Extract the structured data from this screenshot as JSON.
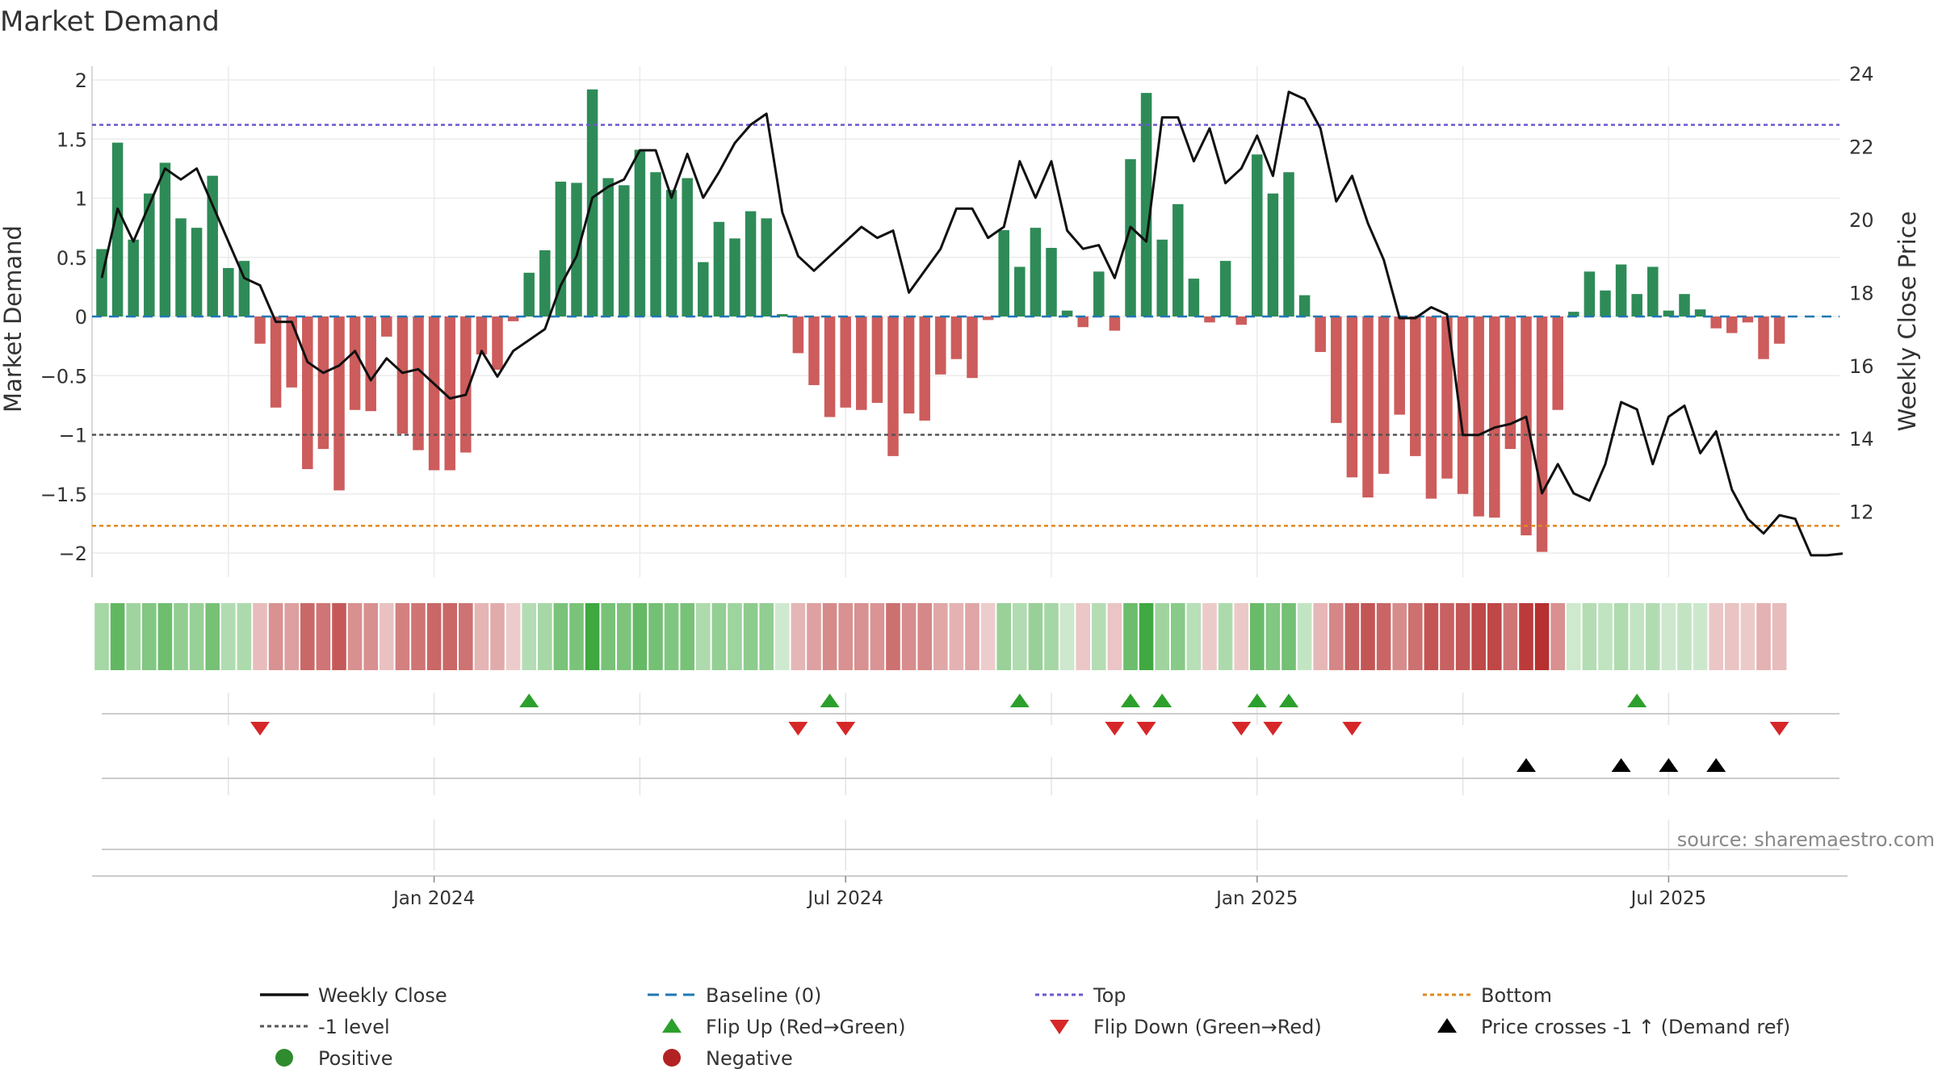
{
  "chart_data": {
    "type": "bar",
    "title": "Market Demand",
    "ylabel": "Market Demand",
    "y2label": "Weekly Close Price",
    "ylim": [
      -2.2,
      2.2
    ],
    "y2lim": [
      10.6,
      24.4
    ],
    "yticks": [
      {
        "v": 2,
        "t": "2"
      },
      {
        "v": 1.5,
        "t": "1.5"
      },
      {
        "v": 1,
        "t": "1"
      },
      {
        "v": 0.5,
        "t": "0.5"
      },
      {
        "v": 0,
        "t": "0"
      },
      {
        "v": -0.5,
        "t": "−0.5"
      },
      {
        "v": -1,
        "t": "−1"
      },
      {
        "v": -1.5,
        "t": "−1.5"
      },
      {
        "v": -2,
        "t": "−2"
      }
    ],
    "y2ticks": [
      {
        "v": 24,
        "t": "24"
      },
      {
        "v": 22,
        "t": "22"
      },
      {
        "v": 20,
        "t": "20"
      },
      {
        "v": 18,
        "t": "18"
      },
      {
        "v": 16,
        "t": "16"
      },
      {
        "v": 14,
        "t": "14"
      },
      {
        "v": 12,
        "t": "12"
      }
    ],
    "xticks": [
      {
        "i": 21,
        "t": "Jan 2024"
      },
      {
        "i": 47,
        "t": "Jul 2024"
      },
      {
        "i": 73,
        "t": "Jan 2025"
      },
      {
        "i": 99,
        "t": "Jul 2025"
      }
    ],
    "minor_gridlines": [
      8,
      34,
      60,
      86
    ],
    "demand": [
      0.57,
      1.47,
      0.65,
      1.04,
      1.3,
      0.83,
      0.75,
      1.19,
      0.41,
      0.47,
      -0.23,
      -0.77,
      -0.6,
      -1.29,
      -1.12,
      -1.47,
      -0.79,
      -0.8,
      -0.17,
      -0.99,
      -1.13,
      -1.3,
      -1.3,
      -1.15,
      -0.32,
      -0.45,
      -0.04,
      0.37,
      0.56,
      1.14,
      1.13,
      1.92,
      1.17,
      1.11,
      1.41,
      1.22,
      1.07,
      1.17,
      0.46,
      0.8,
      0.66,
      0.89,
      0.83,
      0.02,
      -0.31,
      -0.58,
      -0.85,
      -0.77,
      -0.79,
      -0.73,
      -1.18,
      -0.82,
      -0.88,
      -0.49,
      -0.36,
      -0.52,
      -0.03,
      0.73,
      0.42,
      0.75,
      0.58,
      0.05,
      -0.09,
      0.38,
      -0.12,
      1.33,
      1.89,
      0.65,
      0.95,
      0.32,
      -0.05,
      0.47,
      -0.07,
      1.37,
      1.04,
      1.22,
      0.18,
      -0.3,
      -0.9,
      -1.36,
      -1.53,
      -1.33,
      -0.83,
      -1.18,
      -1.54,
      -1.37,
      -1.5,
      -1.69,
      -1.7,
      -1.12,
      -1.85,
      -1.99,
      -0.79,
      0.04,
      0.38,
      0.22,
      0.44,
      0.19,
      0.42,
      0.05,
      0.19,
      0.06,
      -0.1,
      -0.14,
      -0.05,
      -0.36,
      -0.23
    ],
    "weekly_close": [
      18.4,
      20.3,
      19.4,
      20.4,
      21.4,
      21.1,
      21.4,
      20.4,
      19.4,
      18.4,
      18.2,
      17.2,
      17.2,
      16.1,
      15.8,
      16.0,
      16.4,
      15.6,
      16.2,
      15.8,
      15.9,
      15.5,
      15.1,
      15.2,
      16.4,
      15.7,
      16.4,
      16.7,
      17.0,
      18.2,
      19.0,
      20.6,
      20.9,
      21.1,
      21.9,
      21.9,
      20.6,
      21.8,
      20.6,
      21.3,
      22.1,
      22.6,
      22.9,
      20.2,
      19.0,
      18.6,
      19.0,
      19.4,
      19.8,
      19.5,
      19.7,
      18.0,
      18.6,
      19.2,
      20.3,
      20.3,
      19.5,
      19.8,
      21.6,
      20.6,
      21.6,
      19.7,
      19.2,
      19.3,
      18.4,
      19.8,
      19.4,
      22.8,
      22.8,
      21.6,
      22.5,
      21.0,
      21.4,
      22.3,
      21.2,
      23.5,
      23.3,
      22.5,
      20.5,
      21.2,
      19.9,
      18.9,
      17.3,
      17.3,
      17.6,
      17.4,
      14.1,
      14.1,
      14.3,
      14.4,
      14.6,
      12.5,
      13.3,
      12.5,
      12.3,
      13.3,
      15.0,
      14.8,
      13.3,
      14.6,
      14.9,
      13.6,
      14.2,
      12.6,
      11.8,
      11.4,
      11.9,
      11.8,
      10.8,
      10.8,
      10.85
    ],
    "top_level": 1.62,
    "bottom_level": -1.77,
    "minus_one_level": -1,
    "flip_up_idx": [
      27,
      46,
      58,
      65,
      67,
      73,
      75,
      97
    ],
    "flip_down_idx": [
      10,
      44,
      47,
      64,
      66,
      72,
      74,
      79,
      106
    ],
    "price_cross_idx": [
      90,
      96,
      99,
      102
    ],
    "colors": {
      "pos": "#2e8b57",
      "neg": "#cd5c5c",
      "close": "#111111",
      "baseline": "#1f77b4",
      "top": "#6a5acd",
      "minus_one": "#555555",
      "bottom": "#e08a1e",
      "flip_up": "#2ca02c",
      "flip_down": "#d62728",
      "cross": "#000000",
      "positive_marker": "#2e8b2e",
      "negative_marker": "#b22222"
    },
    "source": "source: sharemaestro.com",
    "legend": [
      {
        "label": "Weekly Close",
        "kind": "line",
        "color": "#111111"
      },
      {
        "label": "Baseline (0)",
        "kind": "dashed",
        "color": "#1f77b4"
      },
      {
        "label": "Top",
        "kind": "dotted",
        "color": "#6a5acd"
      },
      {
        "label": "Bottom",
        "kind": "dotted",
        "color": "#e08a1e"
      },
      {
        "label": "-1 level",
        "kind": "dotted",
        "color": "#555555"
      },
      {
        "label": "Flip Up (Red→Green)",
        "kind": "tri-up",
        "color": "#2ca02c"
      },
      {
        "label": "Flip Down (Green→Red)",
        "kind": "tri-down",
        "color": "#d62728"
      },
      {
        "label": "Price crosses -1 ↑ (Demand ref)",
        "kind": "tri-up",
        "color": "#000000"
      },
      {
        "label": "Positive",
        "kind": "dot",
        "color": "#2e8b2e"
      },
      {
        "label": "Negative",
        "kind": "dot",
        "color": "#b22222"
      }
    ]
  }
}
